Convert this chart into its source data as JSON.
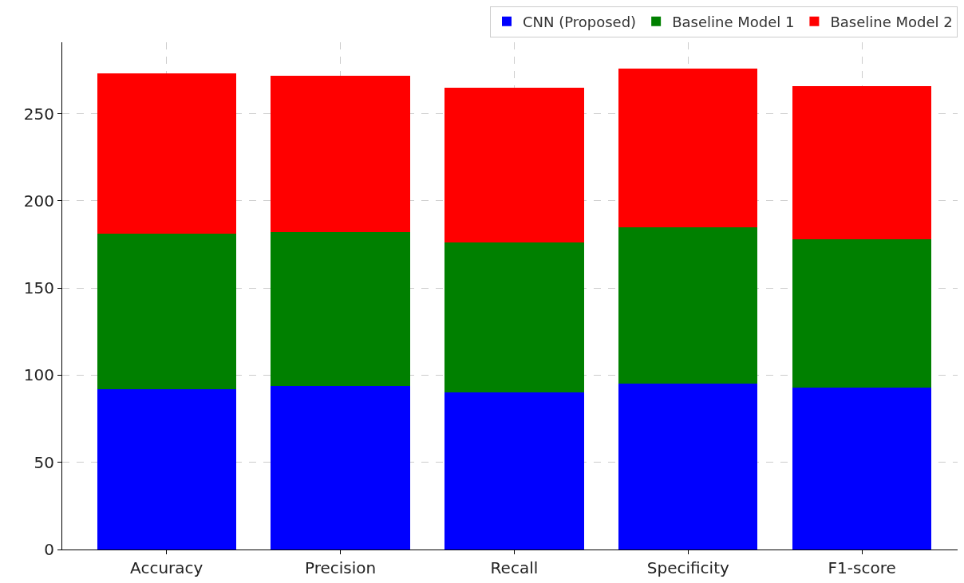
{
  "chart_data": {
    "type": "bar",
    "stacked": true,
    "categories": [
      "Accuracy",
      "Precision",
      "Recall",
      "Specificity",
      "F1-score"
    ],
    "series": [
      {
        "name": "CNN (Proposed)",
        "color": "#0000ff",
        "values": [
          92,
          94,
          90,
          95,
          93
        ]
      },
      {
        "name": "Baseline Model 1",
        "color": "#008000",
        "values": [
          89,
          88,
          86,
          90,
          85
        ]
      },
      {
        "name": "Baseline Model 2",
        "color": "#ff0000",
        "values": [
          92,
          90,
          89,
          91,
          88
        ]
      }
    ],
    "ylim": [
      0,
      291
    ],
    "yticks": [
      0,
      50,
      100,
      150,
      200,
      250
    ],
    "grid": true,
    "legend": "top right"
  }
}
